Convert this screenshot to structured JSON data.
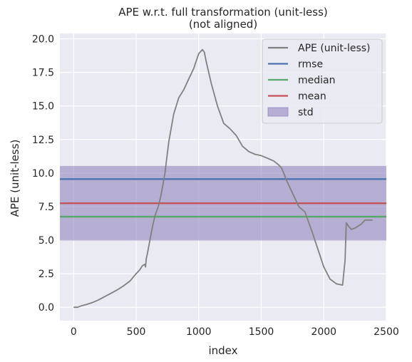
{
  "chart_data": {
    "type": "line",
    "title": "APE w.r.t. full transformation (unit-less)",
    "subtitle": "(not aligned)",
    "xlabel": "index",
    "ylabel": "APE (unit-less)",
    "xlim": [
      -110,
      2500
    ],
    "ylim": [
      -1.0,
      20.4
    ],
    "xticks": [
      0,
      500,
      1000,
      1500,
      2000,
      2500
    ],
    "yticks": [
      0.0,
      2.5,
      5.0,
      7.5,
      10.0,
      12.5,
      15.0,
      17.5,
      20.0
    ],
    "xtick_labels": [
      "0",
      "500",
      "1000",
      "1500",
      "2000",
      "2500"
    ],
    "ytick_labels": [
      "0.0",
      "2.5",
      "5.0",
      "7.5",
      "10.0",
      "12.5",
      "15.0",
      "17.5",
      "20.0"
    ],
    "grid": true,
    "legend_position": "top-right",
    "series": [
      {
        "name": "APE (unit-less)",
        "color": "#808080",
        "x": [
          0,
          30,
          60,
          100,
          150,
          200,
          250,
          300,
          350,
          400,
          450,
          500,
          530,
          550,
          570,
          575,
          580,
          590,
          610,
          630,
          650,
          680,
          700,
          730,
          760,
          800,
          840,
          880,
          920,
          960,
          1000,
          1030,
          1045,
          1060,
          1080,
          1100,
          1150,
          1200,
          1250,
          1300,
          1350,
          1400,
          1450,
          1500,
          1550,
          1600,
          1640,
          1660,
          1680,
          1700,
          1750,
          1800,
          1850,
          1880,
          1900,
          1950,
          2000,
          2050,
          2100,
          2150,
          2170,
          2180,
          2200,
          2220,
          2250,
          2300,
          2330,
          2360,
          2390
        ],
        "values": [
          0.0,
          0.0,
          0.1,
          0.2,
          0.35,
          0.55,
          0.8,
          1.05,
          1.3,
          1.6,
          1.95,
          2.5,
          2.8,
          3.1,
          3.2,
          3.0,
          3.6,
          4.0,
          5.0,
          6.0,
          6.8,
          7.6,
          8.4,
          10.0,
          12.3,
          14.4,
          15.6,
          16.2,
          17.0,
          17.8,
          18.9,
          19.2,
          19.0,
          18.3,
          17.5,
          16.7,
          15.0,
          13.7,
          13.3,
          12.8,
          12.0,
          11.6,
          11.4,
          11.3,
          11.1,
          10.9,
          10.6,
          10.4,
          10.0,
          9.5,
          8.5,
          7.5,
          7.1,
          6.3,
          5.8,
          4.4,
          3.0,
          2.1,
          1.75,
          1.65,
          3.5,
          6.3,
          6.0,
          5.8,
          5.9,
          6.2,
          6.5,
          6.5,
          6.5
        ]
      },
      {
        "name": "rmse",
        "color": "#4c72b0",
        "value": 9.55
      },
      {
        "name": "median",
        "color": "#55a868",
        "value": 6.75
      },
      {
        "name": "mean",
        "color": "#c44e52",
        "value": 7.75
      },
      {
        "name": "std",
        "color": "#8172b3",
        "range": [
          4.97,
          10.53
        ]
      }
    ]
  },
  "colors": {
    "axes_background": "#eaeaf2",
    "grid": "#ffffff",
    "figure_background": "#ffffff"
  }
}
